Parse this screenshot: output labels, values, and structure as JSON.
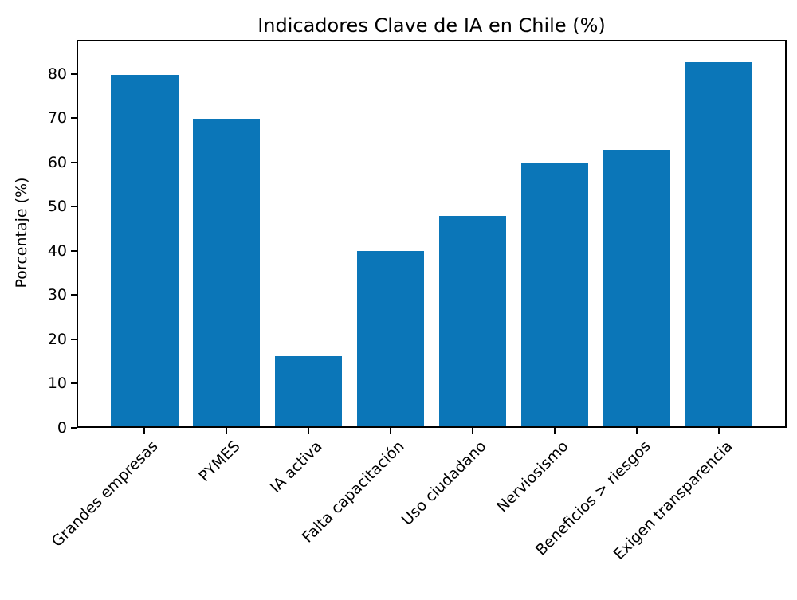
{
  "chart_data": {
    "type": "bar",
    "title": "Indicadores Clave de IA en Chile (%)",
    "xlabel": "",
    "ylabel": "Porcentaje (%)",
    "categories": [
      "Grandes empresas",
      "PYMES",
      "IA activa",
      "Falta capacitación",
      "Uso ciudadano",
      "Nerviosismo",
      "Beneficios > riesgos",
      "Exigen transparencia"
    ],
    "values": [
      80,
      70,
      16,
      40,
      48,
      60,
      63,
      83
    ],
    "yticks": [
      0,
      10,
      20,
      30,
      40,
      50,
      60,
      70,
      80
    ],
    "ylim": [
      0,
      87.7
    ],
    "bar_color": "#0b76b8",
    "axis_color": "#000000",
    "background_color": "#ffffff",
    "grid": false,
    "legend_position": "none",
    "x_tick_rotation_deg": 45
  }
}
